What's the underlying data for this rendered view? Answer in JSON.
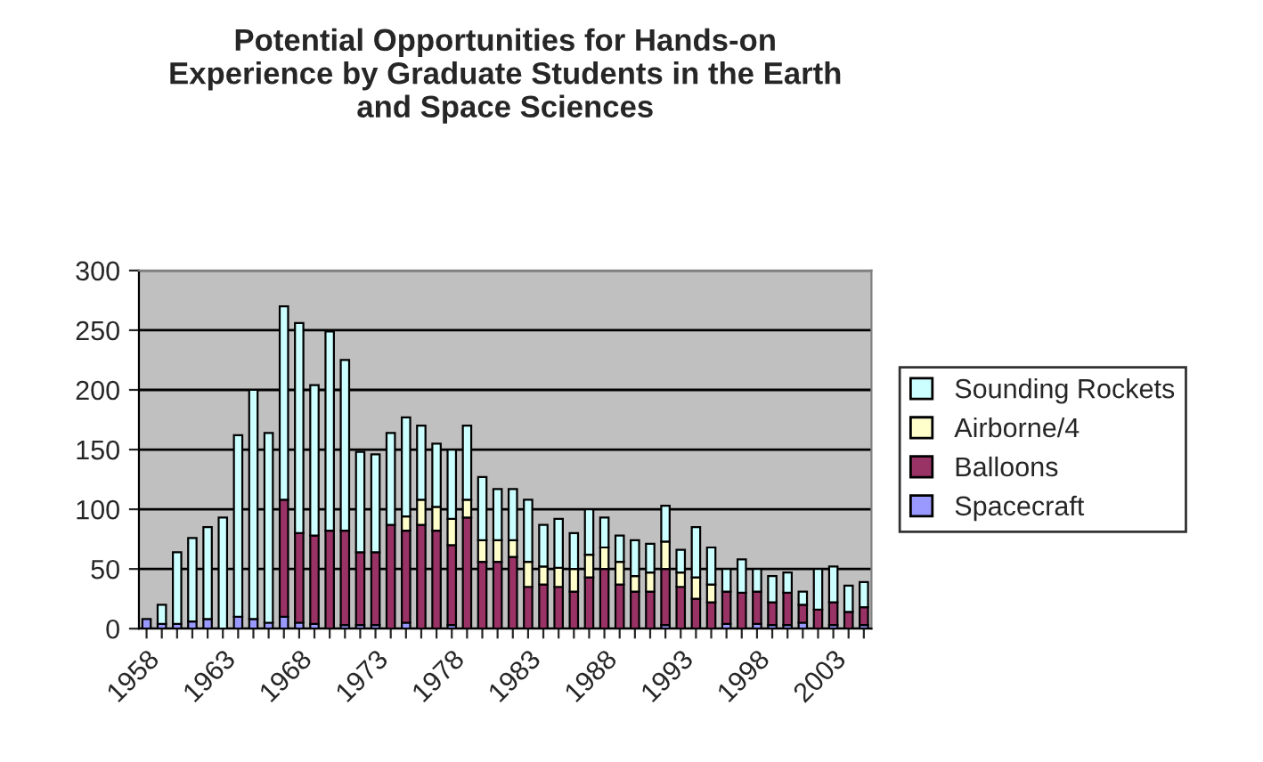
{
  "chart_data": {
    "type": "bar",
    "stacked": true,
    "title": "Potential Opportunities for Hands-on\nExperience by Graduate Students in the Earth\nand Space Sciences",
    "categories": [
      "1958",
      null,
      null,
      null,
      null,
      "1963",
      null,
      null,
      null,
      null,
      "1968",
      null,
      null,
      null,
      null,
      "1973",
      null,
      null,
      null,
      null,
      "1978",
      null,
      null,
      null,
      null,
      "1983",
      null,
      null,
      null,
      null,
      "1988",
      null,
      null,
      null,
      null,
      "1993",
      null,
      null,
      null,
      null,
      "1998",
      null,
      null,
      null,
      null,
      "2003",
      null,
      null
    ],
    "series": [
      {
        "name": "Spacecraft",
        "color": "#9999ff",
        "values": [
          8,
          4,
          4,
          6,
          8,
          null,
          10,
          8,
          5,
          10,
          5,
          4,
          null,
          3,
          3,
          3,
          0,
          5,
          0,
          0,
          3,
          0,
          0,
          0,
          0,
          0,
          0,
          0,
          0,
          0,
          0,
          0,
          0,
          0,
          3,
          0,
          0,
          0,
          4,
          0,
          4,
          3,
          3,
          5,
          0,
          3,
          0,
          3
        ]
      },
      {
        "name": "Balloons",
        "color": "#993366",
        "values": [
          0,
          0,
          0,
          0,
          0,
          0,
          0,
          0,
          0,
          98,
          75,
          74,
          82,
          79,
          61,
          61,
          87,
          77,
          87,
          82,
          67,
          93,
          56,
          56,
          60,
          35,
          37,
          35,
          31,
          43,
          50,
          37,
          31,
          31,
          47,
          35,
          25,
          22,
          27,
          30,
          27,
          19,
          27,
          15,
          16,
          19,
          14,
          15
        ]
      },
      {
        "name": "Airborne/4",
        "color": "#ffffcc",
        "values": [
          0,
          0,
          0,
          0,
          0,
          0,
          0,
          0,
          0,
          0,
          0,
          0,
          0,
          0,
          0,
          0,
          0,
          12,
          21,
          20,
          22,
          15,
          18,
          18,
          14,
          21,
          15,
          16,
          19,
          19,
          18,
          19,
          13,
          16,
          23,
          12,
          18,
          15,
          0,
          0,
          0,
          0,
          0,
          0,
          0,
          0,
          0,
          0
        ]
      },
      {
        "name": "Sounding Rockets",
        "color": "#ccffff",
        "values": [
          0,
          16,
          60,
          70,
          77,
          93,
          152,
          192,
          159,
          162,
          176,
          126,
          167,
          143,
          84,
          82,
          77,
          83,
          62,
          53,
          58,
          62,
          53,
          43,
          43,
          52,
          35,
          41,
          30,
          38,
          25,
          22,
          30,
          24,
          30,
          19,
          42,
          31,
          19,
          28,
          19,
          22,
          17,
          11,
          34,
          30,
          22,
          21
        ]
      }
    ],
    "ylim": [
      0,
      300
    ],
    "yticks": [
      0,
      50,
      100,
      150,
      200,
      250,
      300
    ],
    "grid": "y",
    "legend": "right"
  }
}
